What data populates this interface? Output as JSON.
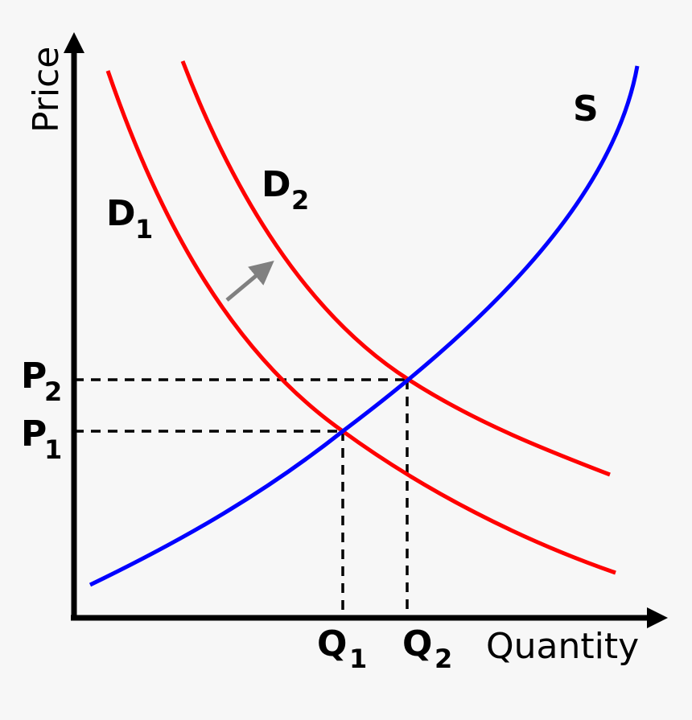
{
  "axes": {
    "x_label": "Quantity",
    "y_label": "Price"
  },
  "curves": {
    "supply": {
      "label": "S",
      "color": "#0000ff"
    },
    "demand1": {
      "label": "D",
      "subscript": "1",
      "color": "#ff0000"
    },
    "demand2": {
      "label": "D",
      "subscript": "2",
      "color": "#ff0000"
    }
  },
  "equilibria": {
    "p1": {
      "label": "P",
      "subscript": "1"
    },
    "p2": {
      "label": "P",
      "subscript": "2"
    },
    "q1": {
      "label": "Q",
      "subscript": "1"
    },
    "q2": {
      "label": "Q",
      "subscript": "2"
    }
  },
  "shift_arrow": {
    "color": "#808080"
  },
  "colors": {
    "axis": "#000000",
    "background": "#f7f7f7"
  }
}
